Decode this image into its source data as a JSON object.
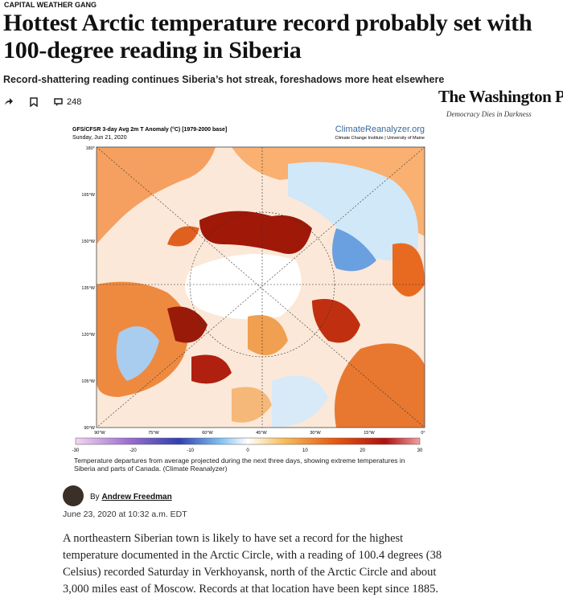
{
  "header": {
    "section": "CAPITAL WEATHER GANG",
    "title": "Hottest Arctic temperature record probably set with 100-degree reading in Siberia",
    "subtitle": "Record-shattering reading continues Siberia’s hot streak, foreshadows more heat elsewhere",
    "comment_count": "248",
    "logo": "The Washington Post",
    "tagline": "Democracy Dies in Darkness"
  },
  "figure": {
    "map_title": "GFS/CFSR 3-day Avg 2m T Anomaly (°C) [1979-2000 base]",
    "map_date": "Sunday, Jun 21, 2020",
    "source": "ClimateReanalyzer.org",
    "source_sub": "Climate Change Institute | University of Maine",
    "left_labels": [
      "180°",
      "165°W",
      "150°W",
      "135°W",
      "120°W",
      "105°W",
      "90°W"
    ],
    "bottom_labels": [
      "90°W",
      "75°W",
      "60°W",
      "45°W",
      "30°W",
      "15°W",
      "0°"
    ],
    "colorbar_ticks": [
      -30,
      -20,
      -10,
      0,
      10,
      20,
      30
    ],
    "caption": "Temperature departures from average projected during the next three days, showing extreme temperatures in Siberia and parts of Canada. (Climate Reanalyzer)"
  },
  "byline": {
    "author_prefix": "By",
    "author": "Andrew Freedman",
    "date": "June 23, 2020 at 10:32 a.m. EDT"
  },
  "body": {
    "paragraph": "A northeastern Siberian town is likely to have set a record for the highest temperature documented in the Arctic Circle, with a reading of 100.4 degrees (38 Celsius) recorded Saturday in Verkhoyansk, north of the Arctic Circle and about 3,000 miles east of Moscow. Records at that location have been kept since 1885."
  }
}
